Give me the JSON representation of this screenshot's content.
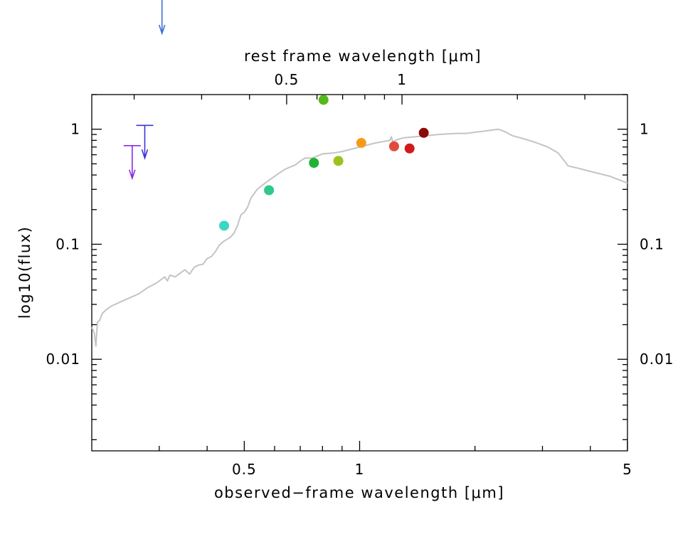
{
  "chart_data": {
    "type": "scatter",
    "title": "",
    "xlabel": "observed−frame wavelength [μm]",
    "ylabel": "log10(flux)",
    "top_xlabel": "rest frame wavelength [μm]",
    "xscale": "log",
    "yscale": "log",
    "xlim": [
      0.2,
      5
    ],
    "ylim": [
      0.0016,
      2.0
    ],
    "top_axis_factor": 1.29,
    "grid": false,
    "x_tick_labels": [
      {
        "value": 0.5,
        "label": "0.5"
      },
      {
        "value": 1,
        "label": "1"
      },
      {
        "value": 5,
        "label": "5"
      }
    ],
    "top_tick_labels": [
      {
        "value": 0.5,
        "label": "0.5"
      },
      {
        "value": 1,
        "label": "1"
      }
    ],
    "y_tick_labels": [
      {
        "value": 1,
        "label": "1"
      },
      {
        "value": 0.1,
        "label": "0.1"
      },
      {
        "value": 0.01,
        "label": "0.01"
      }
    ],
    "template_color": "#c4c4c4",
    "template": {
      "x": [
        0.2,
        0.203,
        0.205,
        0.207,
        0.21,
        0.213,
        0.218,
        0.225,
        0.235,
        0.25,
        0.265,
        0.28,
        0.295,
        0.31,
        0.315,
        0.32,
        0.33,
        0.34,
        0.35,
        0.36,
        0.37,
        0.38,
        0.39,
        0.4,
        0.41,
        0.42,
        0.43,
        0.44,
        0.45,
        0.46,
        0.47,
        0.48,
        0.49,
        0.5,
        0.51,
        0.52,
        0.54,
        0.56,
        0.58,
        0.6,
        0.62,
        0.64,
        0.66,
        0.68,
        0.7,
        0.72,
        0.75,
        0.78,
        0.8,
        0.85,
        0.9,
        0.95,
        1.0,
        1.05,
        1.1,
        1.15,
        1.2,
        1.21,
        1.22,
        1.25,
        1.3,
        1.4,
        1.5,
        1.6,
        1.7,
        1.8,
        1.9,
        2.0,
        2.1,
        2.2,
        2.3,
        2.4,
        2.5,
        2.7,
        2.9,
        3.1,
        3.3,
        3.5,
        3.7,
        4.0,
        4.5,
        5.0
      ],
      "y": [
        0.019,
        0.017,
        0.013,
        0.021,
        0.022,
        0.025,
        0.027,
        0.029,
        0.031,
        0.034,
        0.037,
        0.042,
        0.046,
        0.052,
        0.048,
        0.054,
        0.052,
        0.056,
        0.06,
        0.055,
        0.063,
        0.066,
        0.067,
        0.075,
        0.078,
        0.086,
        0.098,
        0.105,
        0.11,
        0.115,
        0.125,
        0.145,
        0.18,
        0.19,
        0.21,
        0.25,
        0.3,
        0.33,
        0.36,
        0.39,
        0.42,
        0.45,
        0.47,
        0.49,
        0.53,
        0.56,
        0.56,
        0.59,
        0.61,
        0.62,
        0.64,
        0.67,
        0.7,
        0.73,
        0.76,
        0.78,
        0.8,
        0.86,
        0.78,
        0.81,
        0.84,
        0.86,
        0.88,
        0.9,
        0.91,
        0.92,
        0.92,
        0.94,
        0.96,
        0.98,
        1.0,
        0.95,
        0.88,
        0.82,
        0.76,
        0.7,
        0.62,
        0.48,
        0.46,
        0.43,
        0.39,
        0.34
      ]
    },
    "points": [
      {
        "x": 0.443,
        "y": 0.145,
        "color": "#3bd6c6",
        "yerr": 0.012
      },
      {
        "x": 0.58,
        "y": 0.295,
        "color": "#2ec98a"
      },
      {
        "x": 0.76,
        "y": 0.51,
        "color": "#1fb233"
      },
      {
        "x": 0.805,
        "y": 1.8,
        "color": "#55b81c"
      },
      {
        "x": 0.88,
        "y": 0.53,
        "color": "#9cc21e"
      },
      {
        "x": 1.01,
        "y": 0.76,
        "color": "#f79a1c"
      },
      {
        "x": 1.23,
        "y": 0.71,
        "color": "#e24a3b"
      },
      {
        "x": 1.35,
        "y": 0.68,
        "color": "#d11a1a"
      },
      {
        "x": 1.47,
        "y": 0.93,
        "color": "#8b0a0a"
      }
    ],
    "upper_limits": [
      {
        "x": 0.255,
        "y": 0.72,
        "color": "#8a2be2"
      },
      {
        "x": 0.275,
        "y": 1.08,
        "color": "#3a35d8"
      },
      {
        "x": 0.305,
        "y": 9.0,
        "color": "#3b6fd6"
      }
    ]
  }
}
